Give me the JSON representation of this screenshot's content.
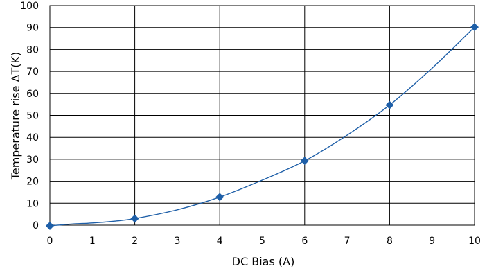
{
  "chart_data": {
    "type": "line",
    "title": "",
    "xlabel": "DC Bias (A)",
    "ylabel": "Temperature rise  ΔT(K)",
    "xlim": [
      0,
      10
    ],
    "ylim": [
      0,
      100
    ],
    "x_ticks": [
      "0",
      "1",
      "2",
      "3",
      "4",
      "5",
      "6",
      "7",
      "8",
      "9",
      "10"
    ],
    "y_ticks": [
      "0",
      "10",
      "20",
      "30",
      "40",
      "50",
      "60",
      "70",
      "80",
      "90",
      "100"
    ],
    "grid": true,
    "series": [
      {
        "color": "#1e5fa8",
        "marker": "diamond",
        "curve": [
          [
            0,
            -0.3
          ],
          [
            0.5,
            0.5
          ],
          [
            1,
            1
          ],
          [
            1.5,
            1.8
          ],
          [
            2,
            3
          ],
          [
            3,
            7
          ],
          [
            4,
            12.8
          ],
          [
            5,
            20.5
          ],
          [
            6,
            29.3
          ],
          [
            7,
            41
          ],
          [
            8,
            54.7
          ],
          [
            9,
            71.5
          ],
          [
            10,
            90.2
          ]
        ],
        "points": [
          [
            0,
            -0.3
          ],
          [
            2,
            3
          ],
          [
            4,
            12.8
          ],
          [
            6,
            29.3
          ],
          [
            8,
            54.7
          ],
          [
            10,
            90.2
          ]
        ]
      }
    ]
  }
}
